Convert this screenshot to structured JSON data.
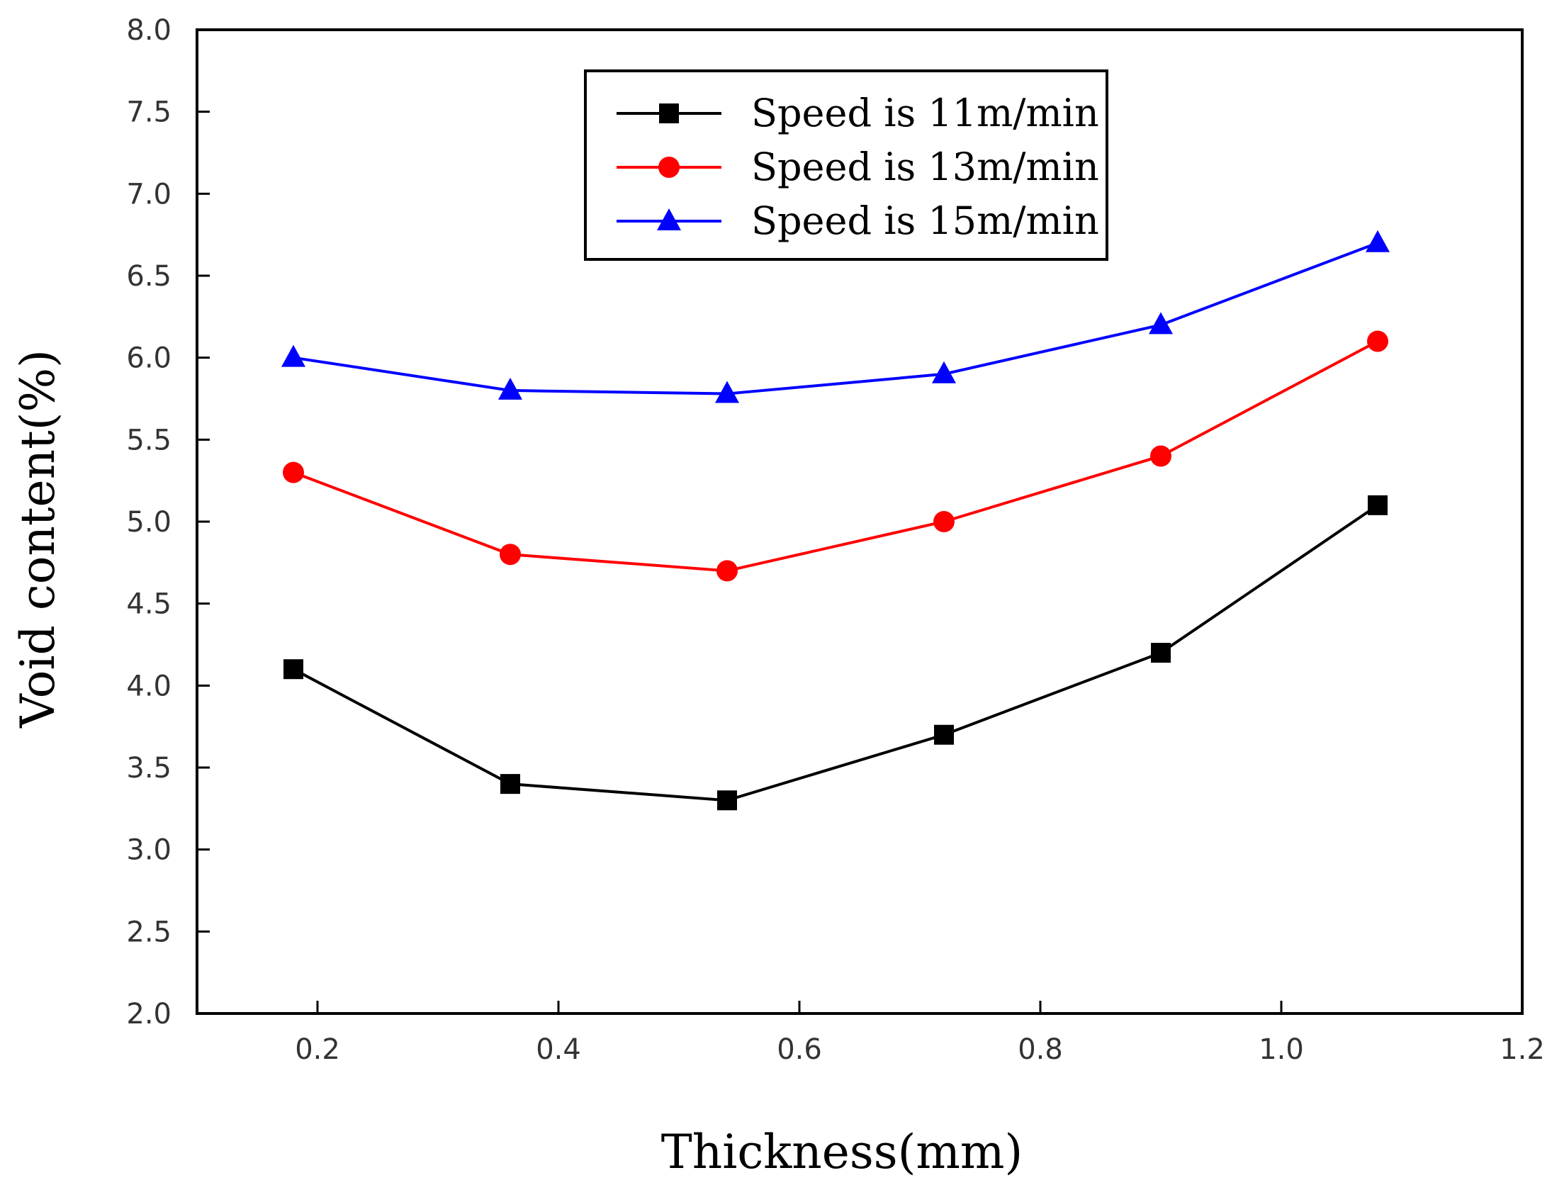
{
  "chart_data": {
    "type": "line",
    "title": "",
    "xlabel": "Thickness(mm)",
    "ylabel": "Void content(%)",
    "xlim": [
      0.1,
      1.2
    ],
    "ylim": [
      2.0,
      8.0
    ],
    "x_ticks": [
      0.2,
      0.4,
      0.6,
      0.8,
      1.0,
      1.2
    ],
    "x_tick_labels": [
      "0.2",
      "0.4",
      "0.6",
      "0.8",
      "1.0",
      "1.2"
    ],
    "y_ticks": [
      2.0,
      2.5,
      3.0,
      3.5,
      4.0,
      4.5,
      5.0,
      5.5,
      6.0,
      6.5,
      7.0,
      7.5,
      8.0
    ],
    "y_tick_labels": [
      "2.0",
      "2.5",
      "3.0",
      "3.5",
      "4.0",
      "4.5",
      "5.0",
      "5.5",
      "6.0",
      "6.5",
      "7.0",
      "7.5",
      "8.0"
    ],
    "grid": false,
    "legend_position": "top-center",
    "x": [
      0.18,
      0.36,
      0.54,
      0.72,
      0.9,
      1.08
    ],
    "series": [
      {
        "name": "Speed is 11m/min",
        "values": [
          4.1,
          3.4,
          3.3,
          3.7,
          4.2,
          5.1
        ],
        "color": "#000000",
        "marker": "square"
      },
      {
        "name": "Speed is 13m/min",
        "values": [
          5.3,
          4.8,
          4.7,
          5.0,
          5.4,
          6.1
        ],
        "color": "#ff0000",
        "marker": "circle"
      },
      {
        "name": "Speed is 15m/min",
        "values": [
          6.0,
          5.8,
          5.78,
          5.9,
          6.2,
          6.7
        ],
        "color": "#0000ff",
        "marker": "triangle"
      }
    ]
  }
}
